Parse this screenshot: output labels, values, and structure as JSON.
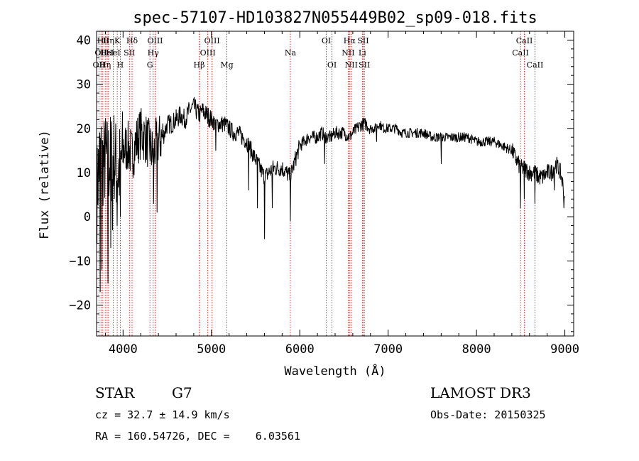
{
  "chart_data": {
    "type": "line",
    "title": "spec-57107-HD103827N055449B02_sp09-018.fits",
    "xlabel": "Wavelength (Å)",
    "ylabel": "Flux (relative)",
    "xlim": [
      3700,
      9100
    ],
    "ylim": [
      -27,
      42
    ],
    "x_ticks": [
      {
        "value": 4000,
        "label": "4000"
      },
      {
        "value": 5000,
        "label": "5000"
      },
      {
        "value": 6000,
        "label": "6000"
      },
      {
        "value": 7000,
        "label": "7000"
      },
      {
        "value": 8000,
        "label": "8000"
      },
      {
        "value": 9000,
        "label": "9000"
      }
    ],
    "y_ticks": [
      {
        "value": -20,
        "label": "−20"
      },
      {
        "value": -10,
        "label": "−10"
      },
      {
        "value": 0,
        "label": "0"
      },
      {
        "value": 10,
        "label": "10"
      },
      {
        "value": 20,
        "label": "20"
      },
      {
        "value": 30,
        "label": "30"
      },
      {
        "value": 40,
        "label": "40"
      }
    ],
    "grid": false,
    "spectrum_anchors": [
      [
        3705,
        5
      ],
      [
        3720,
        10
      ],
      [
        3740,
        14
      ],
      [
        3760,
        13
      ],
      [
        3780,
        12
      ],
      [
        3800,
        13
      ],
      [
        3830,
        12
      ],
      [
        3860,
        13
      ],
      [
        3900,
        14
      ],
      [
        3930,
        10
      ],
      [
        3968,
        11
      ],
      [
        4000,
        15
      ],
      [
        4050,
        16
      ],
      [
        4102,
        14
      ],
      [
        4150,
        17
      ],
      [
        4200,
        19
      ],
      [
        4250,
        18
      ],
      [
        4300,
        16
      ],
      [
        4340,
        14
      ],
      [
        4380,
        17
      ],
      [
        4450,
        18
      ],
      [
        4500,
        21
      ],
      [
        4550,
        21
      ],
      [
        4600,
        22
      ],
      [
        4650,
        23
      ],
      [
        4700,
        22
      ],
      [
        4750,
        24
      ],
      [
        4800,
        25
      ],
      [
        4861,
        23
      ],
      [
        4900,
        24
      ],
      [
        4950,
        23
      ],
      [
        5000,
        22
      ],
      [
        5050,
        21
      ],
      [
        5100,
        21
      ],
      [
        5150,
        21
      ],
      [
        5200,
        20
      ],
      [
        5250,
        19
      ],
      [
        5300,
        19
      ],
      [
        5350,
        18
      ],
      [
        5400,
        17
      ],
      [
        5450,
        15
      ],
      [
        5500,
        13
      ],
      [
        5550,
        11
      ],
      [
        5600,
        9
      ],
      [
        5650,
        10
      ],
      [
        5700,
        11
      ],
      [
        5750,
        11
      ],
      [
        5800,
        11
      ],
      [
        5850,
        10
      ],
      [
        5893,
        9
      ],
      [
        5950,
        13
      ],
      [
        6000,
        16
      ],
      [
        6050,
        17
      ],
      [
        6100,
        18
      ],
      [
        6150,
        18
      ],
      [
        6200,
        18
      ],
      [
        6250,
        19
      ],
      [
        6300,
        18
      ],
      [
        6350,
        18
      ],
      [
        6400,
        19
      ],
      [
        6450,
        19
      ],
      [
        6500,
        19
      ],
      [
        6563,
        18
      ],
      [
        6600,
        19
      ],
      [
        6650,
        20
      ],
      [
        6700,
        21
      ],
      [
        6750,
        21
      ],
      [
        6800,
        20
      ],
      [
        6850,
        20
      ],
      [
        6900,
        21
      ],
      [
        6950,
        20
      ],
      [
        7000,
        20
      ],
      [
        7050,
        20
      ],
      [
        7100,
        20
      ],
      [
        7150,
        19
      ],
      [
        7200,
        19
      ],
      [
        7250,
        19
      ],
      [
        7300,
        19
      ],
      [
        7400,
        19
      ],
      [
        7500,
        18
      ],
      [
        7600,
        18
      ],
      [
        7700,
        18
      ],
      [
        7800,
        18
      ],
      [
        7900,
        18
      ],
      [
        8000,
        17
      ],
      [
        8100,
        17
      ],
      [
        8200,
        17
      ],
      [
        8300,
        16
      ],
      [
        8400,
        15
      ],
      [
        8498,
        11
      ],
      [
        8542,
        11
      ],
      [
        8600,
        10
      ],
      [
        8662,
        10
      ],
      [
        8700,
        9
      ],
      [
        8750,
        9
      ],
      [
        8800,
        10
      ],
      [
        8850,
        10
      ],
      [
        8900,
        12
      ],
      [
        8950,
        10
      ],
      [
        9000,
        5
      ]
    ],
    "spectrum_dips": [
      {
        "x": 3740,
        "y": -17
      },
      {
        "x": 3760,
        "y": -12
      },
      {
        "x": 3795,
        "y": -20
      },
      {
        "x": 3830,
        "y": -15
      },
      {
        "x": 3860,
        "y": -7
      },
      {
        "x": 3880,
        "y": -3
      },
      {
        "x": 3933,
        "y": -2
      },
      {
        "x": 3968,
        "y": 0
      },
      {
        "x": 4345,
        "y": 3
      },
      {
        "x": 4385,
        "y": 1
      },
      {
        "x": 5050,
        "y": 15
      },
      {
        "x": 5420,
        "y": 6
      },
      {
        "x": 5520,
        "y": 2
      },
      {
        "x": 5600,
        "y": -5
      },
      {
        "x": 5690,
        "y": 2
      },
      {
        "x": 5893,
        "y": -1
      },
      {
        "x": 6280,
        "y": 12
      },
      {
        "x": 6563,
        "y": 15
      },
      {
        "x": 6870,
        "y": 17
      },
      {
        "x": 7240,
        "y": 18
      },
      {
        "x": 7600,
        "y": 12
      },
      {
        "x": 8498,
        "y": 2
      },
      {
        "x": 8542,
        "y": 4
      },
      {
        "x": 8662,
        "y": 3
      },
      {
        "x": 8880,
        "y": 6
      },
      {
        "x": 8990,
        "y": 2
      }
    ],
    "spectral_lines": [
      {
        "wavelength": 3727,
        "label": "OII",
        "row": 2
      },
      {
        "wavelength": 3750,
        "label": "OII",
        "row": 1
      },
      {
        "wavelength": 3771,
        "label": "Hθ",
        "row": 0
      },
      {
        "wavelength": 3798,
        "label": "Hη",
        "row": 2
      },
      {
        "wavelength": 3820,
        "label": "HeI",
        "row": 1
      },
      {
        "wavelength": 3835,
        "label": "Hη",
        "row": 0
      },
      {
        "wavelength": 3889,
        "label": "HeI",
        "row": 1
      },
      {
        "wavelength": 3934,
        "label": "K",
        "row": 0
      },
      {
        "wavelength": 3969,
        "label": "H",
        "row": 2
      },
      {
        "wavelength": 4072,
        "label": "SII",
        "row": 1
      },
      {
        "wavelength": 4102,
        "label": "Hδ",
        "row": 0
      },
      {
        "wavelength": 4304,
        "label": "G",
        "row": 2
      },
      {
        "wavelength": 4341,
        "label": "Hγ",
        "row": 1
      },
      {
        "wavelength": 4363,
        "label": "OIII",
        "row": 0
      },
      {
        "wavelength": 4861,
        "label": "Hβ",
        "row": 2
      },
      {
        "wavelength": 4959,
        "label": "OIII",
        "row": 1
      },
      {
        "wavelength": 5007,
        "label": "OIII",
        "row": 0
      },
      {
        "wavelength": 5175,
        "label": "Mg",
        "row": 2
      },
      {
        "wavelength": 5893,
        "label": "Na",
        "row": 1
      },
      {
        "wavelength": 6300,
        "label": "OI",
        "row": 0
      },
      {
        "wavelength": 6364,
        "label": "OI",
        "row": 2
      },
      {
        "wavelength": 6548,
        "label": "NII",
        "row": 1
      },
      {
        "wavelength": 6563,
        "label": "Hα",
        "row": 0
      },
      {
        "wavelength": 6583,
        "label": "NII",
        "row": 2
      },
      {
        "wavelength": 6708,
        "label": "Li",
        "row": 1
      },
      {
        "wavelength": 6717,
        "label": "SII",
        "row": 0
      },
      {
        "wavelength": 6731,
        "label": "SII",
        "row": 2
      },
      {
        "wavelength": 8498,
        "label": "CaII",
        "row": 1
      },
      {
        "wavelength": 8542,
        "label": "CaII",
        "row": 0
      },
      {
        "wavelength": 8662,
        "label": "CaII",
        "row": 2
      }
    ],
    "colors": {
      "spectrum": "#000000",
      "lines": "#cc0000",
      "axes": "#000000"
    }
  },
  "footer": {
    "class_label": "STAR",
    "subclass": "G7",
    "survey": "LAMOST DR3",
    "cz": "cz = 32.7 ± 14.9 km/s",
    "obs_date": "Obs-Date: 20150325",
    "radec": "RA = 160.54726, DEC =    6.03561"
  }
}
